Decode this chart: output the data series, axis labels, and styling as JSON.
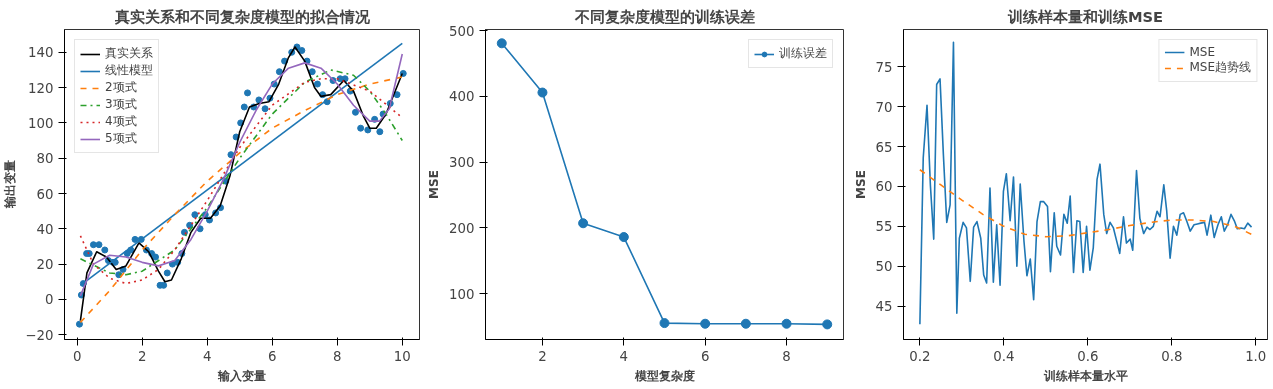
{
  "chart_data": [
    {
      "type": "line",
      "title": "真实关系和不同复杂度模型的拟合情况",
      "xlabel": "输入变量",
      "ylabel": "输出变量",
      "xlim": [
        -0.39,
        10.53
      ],
      "ylim": [
        -22.7,
        152.9
      ],
      "xticks": [
        0,
        2,
        4,
        6,
        8,
        10
      ],
      "yticks": [
        -20,
        0,
        20,
        40,
        60,
        80,
        100,
        120,
        140
      ],
      "grid": false,
      "legend": "top left",
      "series": [
        {
          "type": "scatter",
          "marker": "circle",
          "color": "#1f77b4",
          "x": [
            0.07,
            0.13,
            0.19,
            0.29,
            0.37,
            0.5,
            0.67,
            0.85,
            0.96,
            1.1,
            1.17,
            1.28,
            1.41,
            1.54,
            1.65,
            1.78,
            1.97,
            2.13,
            2.29,
            2.41,
            2.55,
            2.66,
            2.77,
            2.93,
            3.09,
            3.22,
            3.3,
            3.46,
            3.62,
            3.78,
            3.94,
            4.07,
            4.26,
            4.41,
            4.57,
            4.73,
            4.89,
            5.03,
            5.14,
            5.24,
            5.43,
            5.59,
            5.78,
            5.93,
            6.06,
            6.22,
            6.38,
            6.6,
            6.76,
            6.91,
            7.07,
            7.23,
            7.39,
            7.55,
            7.69,
            7.87,
            8.09,
            8.24,
            8.4,
            8.56,
            8.72,
            8.94,
            9.15,
            9.31,
            9.41,
            9.63,
            9.84,
            10.03
          ],
          "values": [
            -14,
            2.5,
            9,
            26,
            26,
            31,
            31,
            28,
            22,
            21,
            21,
            14,
            17,
            26,
            28,
            34,
            34,
            28,
            26,
            24,
            8,
            8,
            15,
            20,
            21,
            26,
            38,
            42,
            48,
            40,
            48,
            45,
            49,
            52,
            67,
            82,
            92,
            100,
            109,
            117,
            109,
            113,
            108,
            114,
            122,
            129,
            135,
            140,
            143,
            141,
            135,
            129,
            122,
            116,
            112,
            124,
            125,
            125,
            118,
            106,
            97,
            96,
            102,
            95,
            105,
            111,
            116,
            128
          ]
        },
        {
          "name": "真实关系",
          "color": "#000000",
          "line_style": "solid",
          "x": [
            0.1,
            0.3,
            0.6,
            0.9,
            1.2,
            1.5,
            1.9,
            2.2,
            2.5,
            2.7,
            2.9,
            3.2,
            3.5,
            3.8,
            4.1,
            4.4,
            4.7,
            5.0,
            5.3,
            5.6,
            5.9,
            6.2,
            6.5,
            6.7,
            7.0,
            7.3,
            7.5,
            7.8,
            8.2,
            8.5,
            8.8,
            9.0,
            9.2,
            9.5,
            10.0
          ],
          "values": [
            -12,
            15,
            27,
            24,
            17,
            19,
            32,
            27,
            16,
            10,
            11,
            23,
            38,
            46,
            46,
            53,
            70,
            95,
            109,
            111,
            112,
            122,
            137,
            143,
            135,
            120,
            115,
            116,
            124,
            118,
            104,
            97,
            97,
            105,
            128
          ]
        },
        {
          "name": "线性模型",
          "color": "#1f77b4",
          "line_style": "solid",
          "x": [
            0.1,
            10.0
          ],
          "values": [
            8,
            145
          ]
        },
        {
          "name": "2项式",
          "color": "#ff7f0e",
          "line_style": "dashed",
          "x": [
            0.1,
            1,
            2,
            3,
            4,
            5,
            6,
            7,
            8,
            9,
            10
          ],
          "values": [
            -13,
            5,
            28,
            48,
            67,
            83,
            97,
            107,
            116,
            122,
            126
          ]
        },
        {
          "name": "3项式",
          "color": "#2ca02c",
          "line_style": "dashdot",
          "x": [
            0.1,
            1,
            1.5,
            2,
            3,
            4,
            5,
            6,
            7,
            7.8,
            8.5,
            9,
            9.5,
            10
          ],
          "values": [
            23,
            15,
            14,
            16,
            28,
            52,
            80,
            105,
            123,
            130,
            127,
            118,
            105,
            90
          ]
        },
        {
          "name": "4项式",
          "color": "#d62728",
          "line_style": "dotted",
          "x": [
            0.1,
            0.5,
            1,
            1.5,
            2,
            2.5,
            3,
            4,
            5,
            6,
            7,
            7.5,
            8,
            9,
            10
          ],
          "values": [
            36,
            20,
            12,
            9,
            11,
            17,
            28,
            56,
            86,
            110,
            123,
            125,
            125,
            118,
            103
          ]
        },
        {
          "name": "5项式",
          "color": "#9467bd",
          "line_style": "solid",
          "x": [
            0.1,
            0.5,
            1,
            1.5,
            2,
            2.5,
            3,
            3.5,
            4,
            4.5,
            5,
            5.5,
            6,
            6.5,
            7,
            7.5,
            8,
            8.5,
            9,
            9.3,
            9.6,
            10
          ],
          "values": [
            2,
            20,
            25,
            24,
            21,
            19,
            22,
            34,
            50,
            68,
            89,
            107,
            122,
            131,
            134,
            131,
            122,
            110,
            101,
            101,
            108,
            139
          ]
        }
      ]
    },
    {
      "type": "line",
      "title": "不同复杂度模型的训练误差",
      "xlabel": "模型复杂度",
      "ylabel": "MSE",
      "xlim": [
        0.6,
        9.4
      ],
      "ylim": [
        30,
        502
      ],
      "xticks": [
        2,
        4,
        6,
        8
      ],
      "yticks": [
        100,
        200,
        300,
        400,
        500
      ],
      "grid": false,
      "legend": "top right",
      "marker": "circle",
      "series": [
        {
          "name": "训练误差",
          "color": "#1f77b4",
          "x": [
            1,
            2,
            3,
            4,
            5,
            6,
            7,
            8,
            9
          ],
          "values": [
            481,
            406,
            207,
            186,
            55,
            54,
            54,
            54,
            53
          ]
        }
      ]
    },
    {
      "type": "line",
      "title": "训练样本量和训练MSE",
      "xlabel": "训练样本量水平",
      "ylabel": "MSE",
      "xlim": [
        0.161,
        1.028
      ],
      "ylim": [
        40.8,
        79.7
      ],
      "xticks": [
        0.2,
        0.4,
        0.6,
        0.8,
        {
          "value": 1.0,
          "label": "1.0"
        }
      ],
      "yticks": [
        45,
        50,
        55,
        60,
        65,
        70,
        75
      ],
      "grid": false,
      "legend": "top right",
      "series": [
        {
          "name": "MSE",
          "color": "#1f77b4",
          "line_style": "solid",
          "x": [
            0.2,
            0.208,
            0.217,
            0.225,
            0.233,
            0.24,
            0.248,
            0.256,
            0.264,
            0.272,
            0.28,
            0.288,
            0.294,
            0.303,
            0.311,
            0.32,
            0.328,
            0.336,
            0.345,
            0.352,
            0.359,
            0.367,
            0.375,
            0.383,
            0.391,
            0.399,
            0.406,
            0.415,
            0.423,
            0.431,
            0.439,
            0.448,
            0.455,
            0.463,
            0.471,
            0.479,
            0.487,
            0.495,
            0.504,
            0.511,
            0.52,
            0.526,
            0.535,
            0.543,
            0.551,
            0.558,
            0.566,
            0.574,
            0.581,
            0.589,
            0.597,
            0.605,
            0.613,
            0.622,
            0.629,
            0.638,
            0.645,
            0.653,
            0.661,
            0.67,
            0.676,
            0.685,
            0.692,
            0.701,
            0.707,
            0.716,
            0.724,
            0.733,
            0.741,
            0.748,
            0.756,
            0.765,
            0.772,
            0.781,
            0.788,
            0.796,
            0.804,
            0.812,
            0.82,
            0.828,
            0.836,
            0.844,
            0.853,
            0.861,
            0.869,
            0.878,
            0.884,
            0.893,
            0.901,
            0.91,
            0.918,
            0.925,
            0.933,
            0.941,
            0.949,
            0.956,
            0.965,
            0.973,
            0.981,
            0.99
          ],
          "values": [
            42.7,
            63.6,
            70.2,
            60.2,
            53.4,
            72.8,
            73.5,
            64.0,
            55.5,
            57.7,
            78.1,
            44.1,
            53.5,
            55.5,
            54.8,
            48.1,
            54.9,
            55.6,
            53.5,
            48.9,
            47.9,
            59.8,
            48.0,
            55.2,
            47.6,
            59.4,
            61.6,
            55.7,
            61.2,
            50.0,
            60.3,
            53.1,
            48.8,
            50.9,
            45.8,
            55.6,
            58.1,
            58.1,
            57.5,
            49.3,
            56.7,
            52.5,
            51.4,
            56.5,
            55.4,
            58.8,
            49.2,
            55.7,
            55.6,
            49.2,
            55.0,
            49.5,
            52.3,
            60.9,
            62.8,
            56.5,
            54.1,
            55.5,
            54.8,
            52.9,
            51.6,
            56.2,
            52.9,
            53.4,
            52.0,
            62.0,
            56.0,
            54.1,
            54.9,
            54.6,
            55.0,
            56.9,
            56.2,
            60.2,
            56.9,
            51.0,
            55.0,
            53.9,
            56.5,
            56.7,
            55.6,
            54.4,
            55.2,
            55.3,
            55.4,
            55.5,
            53.9,
            56.4,
            53.6,
            55.2,
            56.2,
            54.4,
            55.2,
            56.5,
            55.7,
            54.7,
            54.8,
            54.7,
            55.4,
            54.9
          ]
        },
        {
          "name": "MSE趋势线",
          "color": "#ff7f0e",
          "line_style": "dashed",
          "x": [
            0.2,
            0.25,
            0.3,
            0.35,
            0.4,
            0.45,
            0.5,
            0.55,
            0.6,
            0.65,
            0.7,
            0.75,
            0.8,
            0.85,
            0.9,
            0.95,
            0.99
          ],
          "values": [
            62.1,
            60.2,
            58.3,
            56.5,
            55.0,
            54.0,
            53.7,
            53.8,
            54.2,
            54.6,
            55.1,
            55.5,
            55.8,
            55.8,
            55.6,
            55.0,
            54.0
          ]
        }
      ]
    }
  ]
}
